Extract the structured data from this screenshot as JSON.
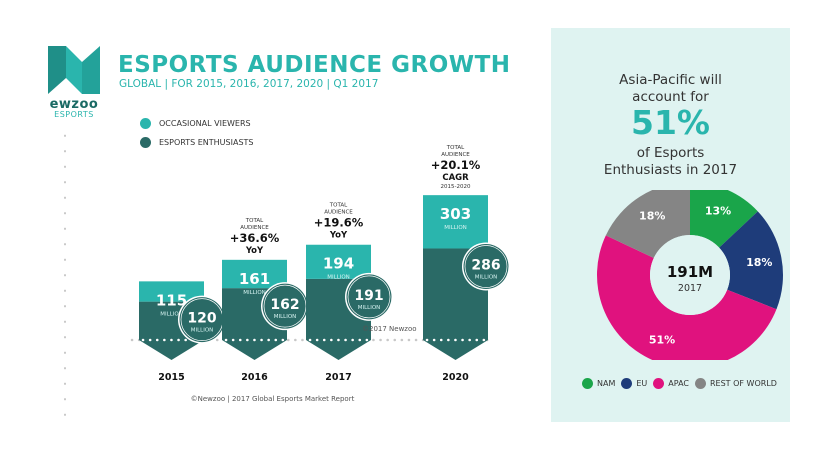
{
  "brand": {
    "logo_text": "ewzoo",
    "logo_sub": "ESPORTS",
    "accent": "#2ab5ad",
    "dark": "#2a6a66"
  },
  "header": {
    "title": "ESPORTS AUDIENCE GROWTH",
    "subtitle": "GLOBAL | FOR 2015, 2016, 2017, 2020 | Q1 2017"
  },
  "legend": [
    {
      "label": "OCCASIONAL VIEWERS",
      "color": "#2ab5ad"
    },
    {
      "label": "ESPORTS ENTHUSIASTS",
      "color": "#2a6a66"
    }
  ],
  "copyright": "©2017 Newzoo",
  "footnote": "©Newzoo | 2017 Global Esports Market Report",
  "panel": {
    "line1": "Asia-Pacific will",
    "line2": "account for",
    "big_pct": "51%",
    "line3": "of Esports",
    "line4": "Enthusiasts in 2017"
  },
  "chart_data": [
    {
      "type": "bar",
      "title": "ESPORTS AUDIENCE GROWTH",
      "subtitle": "GLOBAL | FOR 2015, 2016, 2017, 2020 | Q1 2017",
      "categories": [
        "2015",
        "2016",
        "2017",
        "2020"
      ],
      "unit": "MILLION",
      "series": [
        {
          "name": "OCCASIONAL VIEWERS",
          "color": "#2ab5ad",
          "values": [
            115,
            161,
            194,
            303
          ]
        },
        {
          "name": "ESPORTS ENTHUSIASTS",
          "color": "#2a6a66",
          "values": [
            120,
            162,
            191,
            286
          ]
        }
      ],
      "annotations": [
        null,
        {
          "top": "TOTAL",
          "top2": "AUDIENCE",
          "value": "+36.6%",
          "metric": "YoY",
          "range": ""
        },
        {
          "top": "TOTAL",
          "top2": "AUDIENCE",
          "value": "+19.6%",
          "metric": "YoY",
          "range": ""
        },
        {
          "top": "TOTAL",
          "top2": "AUDIENCE",
          "value": "+20.1%",
          "metric": "CAGR",
          "range": "2015-2020"
        }
      ],
      "stacked": true,
      "grid": false,
      "legend_position": "top-left"
    },
    {
      "type": "pie",
      "variant": "donut",
      "center_value": "191M",
      "center_label": "2017",
      "slices": [
        {
          "label": "NAM",
          "value": 13,
          "color": "#1aa54a"
        },
        {
          "label": "EU",
          "value": 18,
          "color": "#1e3c7a"
        },
        {
          "label": "APAC",
          "value": 51,
          "color": "#e0127e"
        },
        {
          "label": "REST OF WORLD",
          "value": 18,
          "color": "#858585"
        }
      ],
      "value_suffix": "%",
      "legend_position": "bottom"
    }
  ]
}
